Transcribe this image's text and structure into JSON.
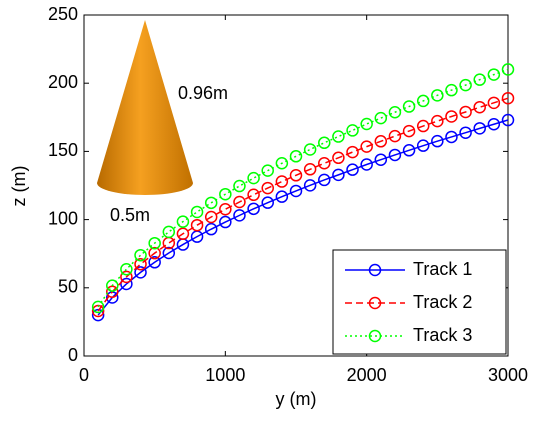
{
  "chart_data": {
    "type": "line",
    "xlabel": "y (m)",
    "ylabel": "z (m)",
    "annotations": [
      "0.96m",
      "0.5m"
    ],
    "x": [
      100,
      200,
      300,
      400,
      500,
      600,
      700,
      800,
      900,
      1000,
      1100,
      1200,
      1300,
      1400,
      1500,
      1600,
      1700,
      1800,
      1900,
      2000,
      2100,
      2200,
      2300,
      2400,
      2500,
      2600,
      2700,
      2800,
      2900,
      3000
    ],
    "series": [
      {
        "name": "Track 1",
        "color": "#0000ff",
        "dash": "solid",
        "marker": "o",
        "values": [
          30,
          42.9,
          52.8,
          61.3,
          68.7,
          75.5,
          81.7,
          87.5,
          93.0,
          98.2,
          103.1,
          107.9,
          112.4,
          116.8,
          121.0,
          125.1,
          129.1,
          132.8,
          136.6,
          140.4,
          143.9,
          147.4,
          150.8,
          154.2,
          157.5,
          160.6,
          163.7,
          166.9,
          169.9,
          173.0
        ]
      },
      {
        "name": "Track 2",
        "color": "#ff0000",
        "dash": "dashed",
        "marker": "o",
        "values": [
          33.0,
          47.1,
          58.0,
          67.3,
          75.4,
          82.8,
          89.6,
          95.9,
          101.9,
          107.6,
          112.9,
          118.2,
          123.1,
          127.9,
          132.5,
          136.9,
          141.3,
          145.3,
          149.5,
          153.5,
          157.4,
          161.2,
          164.9,
          168.6,
          172.2,
          175.6,
          178.9,
          182.4,
          185.6,
          189.0
        ]
      },
      {
        "name": "Track 3",
        "color": "#00ff00",
        "dash": "dotted",
        "marker": "o",
        "values": [
          36.0,
          51.6,
          63.6,
          73.9,
          82.7,
          91.0,
          98.5,
          105.6,
          112.3,
          118.6,
          124.6,
          130.4,
          135.9,
          141.3,
          146.4,
          151.4,
          156.3,
          160.9,
          165.4,
          170.1,
          174.4,
          178.7,
          182.9,
          187.0,
          191.1,
          194.9,
          198.6,
          202.6,
          206.3,
          210.1
        ]
      }
    ],
    "xlim": [
      0,
      3000
    ],
    "xticks": [
      0,
      1000,
      2000,
      3000
    ],
    "ylim": [
      0,
      250
    ],
    "yticks": [
      0,
      50,
      100,
      150,
      200,
      250
    ],
    "grid": false,
    "legend": "lower right"
  }
}
